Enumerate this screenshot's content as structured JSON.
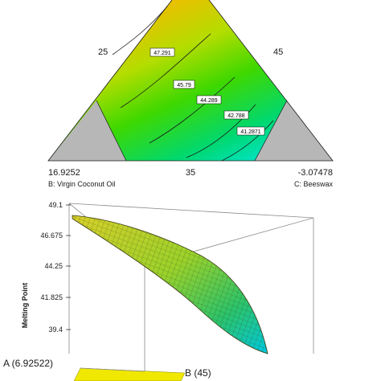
{
  "chart_data": [
    {
      "type": "contour",
      "kind": "ternary",
      "vertex_values": {
        "left": "16.9252",
        "bottom_middle": "35",
        "right": "-3.07478"
      },
      "axis_names": {
        "B": "B: Virgin Coconut Oil",
        "C": "C: Beeswax"
      },
      "side_ticks": {
        "left": "25",
        "right": "45"
      },
      "contour_levels": [
        "47.291",
        "45.79",
        "44.289",
        "42.788",
        "41.2871"
      ],
      "colors": {
        "high": "#f5a300",
        "mid": "#36d400",
        "low": "#00e8ff",
        "excluded": "#b4b4b4"
      }
    },
    {
      "type": "surface",
      "zlabel": "Melting Point",
      "z_ticks": [
        "49.1",
        "46.675",
        "44.25",
        "41.825",
        "39.4"
      ],
      "zlim": [
        39.4,
        49.1
      ],
      "corner_labels": {
        "A": "A (6.92522)",
        "B": "B (45)"
      },
      "colors": {
        "top": "#e6e600",
        "bottom": "#00c8d8",
        "mesh": "#2a2a10"
      }
    }
  ]
}
